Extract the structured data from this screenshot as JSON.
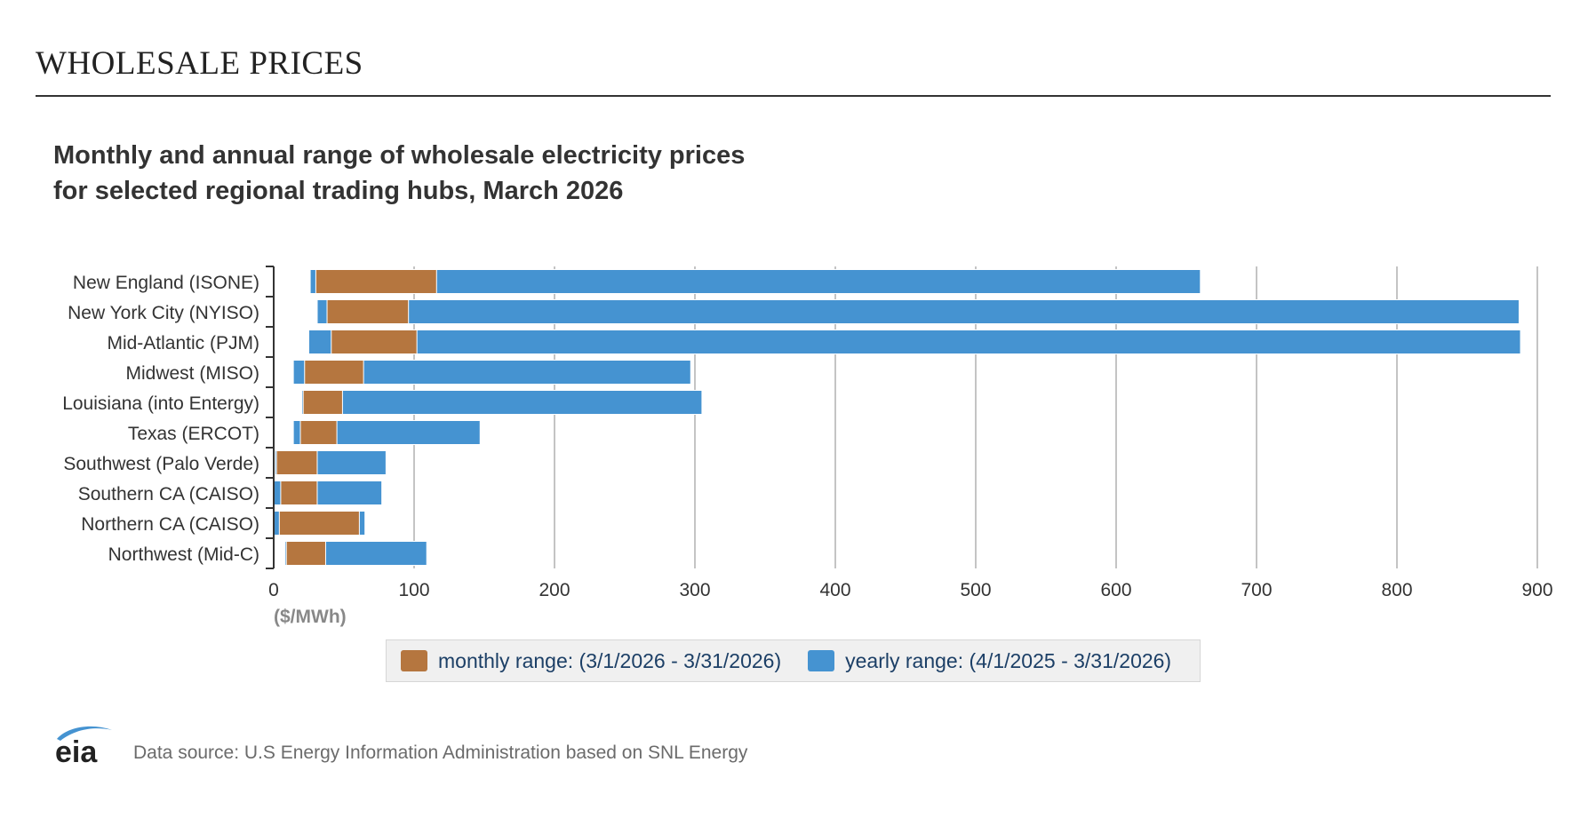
{
  "header": {
    "section_title": "WHOLESALE PRICES"
  },
  "chart_title": {
    "line1": "Monthly and annual range of wholesale electricity prices",
    "line2": "for selected regional trading hubs, March 2026"
  },
  "footer": {
    "logo_text": "eia",
    "source": "Data source: U.S Energy Information Administration based on SNL Energy"
  },
  "colors": {
    "monthly": "#b5763f",
    "yearly": "#4593d1",
    "grid": "#c4c4c4",
    "axis": "#333333",
    "unit": "#888888"
  },
  "chart_data": {
    "type": "bar",
    "orientation": "horizontal",
    "stacked_ranges": true,
    "x_unit_label": "($/MWh)",
    "xlim": [
      0,
      900
    ],
    "xticks": [
      0,
      100,
      200,
      300,
      400,
      500,
      600,
      700,
      800,
      900
    ],
    "grid": true,
    "legend_position": "bottom",
    "categories": [
      "New England (ISONE)",
      "New York City (NYISO)",
      "Mid-Atlantic (PJM)",
      "Midwest (MISO)",
      "Louisiana (into Entergy)",
      "Texas (ERCOT)",
      "Southwest (Palo Verde)",
      "Southern CA (CAISO)",
      "Northern CA (CAISO)",
      "Northwest (Mid-C)"
    ],
    "series": [
      {
        "name": "yearly range: (4/1/2025 - 3/31/2026)",
        "key": "yearly",
        "ranges": [
          [
            26,
            660
          ],
          [
            31,
            887
          ],
          [
            25,
            888
          ],
          [
            14,
            297
          ],
          [
            20,
            305
          ],
          [
            14,
            147
          ],
          [
            1,
            80
          ],
          [
            0,
            77
          ],
          [
            0,
            65
          ],
          [
            8,
            109
          ]
        ]
      },
      {
        "name": "monthly range: (3/1/2026 - 3/31/2026)",
        "key": "monthly",
        "ranges": [
          [
            30,
            116
          ],
          [
            38,
            96
          ],
          [
            41,
            102
          ],
          [
            22,
            64
          ],
          [
            21,
            49
          ],
          [
            19,
            45
          ],
          [
            2,
            31
          ],
          [
            5,
            31
          ],
          [
            4,
            61
          ],
          [
            9,
            37
          ]
        ]
      }
    ]
  },
  "legend": {
    "monthly_label": "monthly range: (3/1/2026 - 3/31/2026)",
    "yearly_label": "yearly range: (4/1/2025 - 3/31/2026)"
  }
}
